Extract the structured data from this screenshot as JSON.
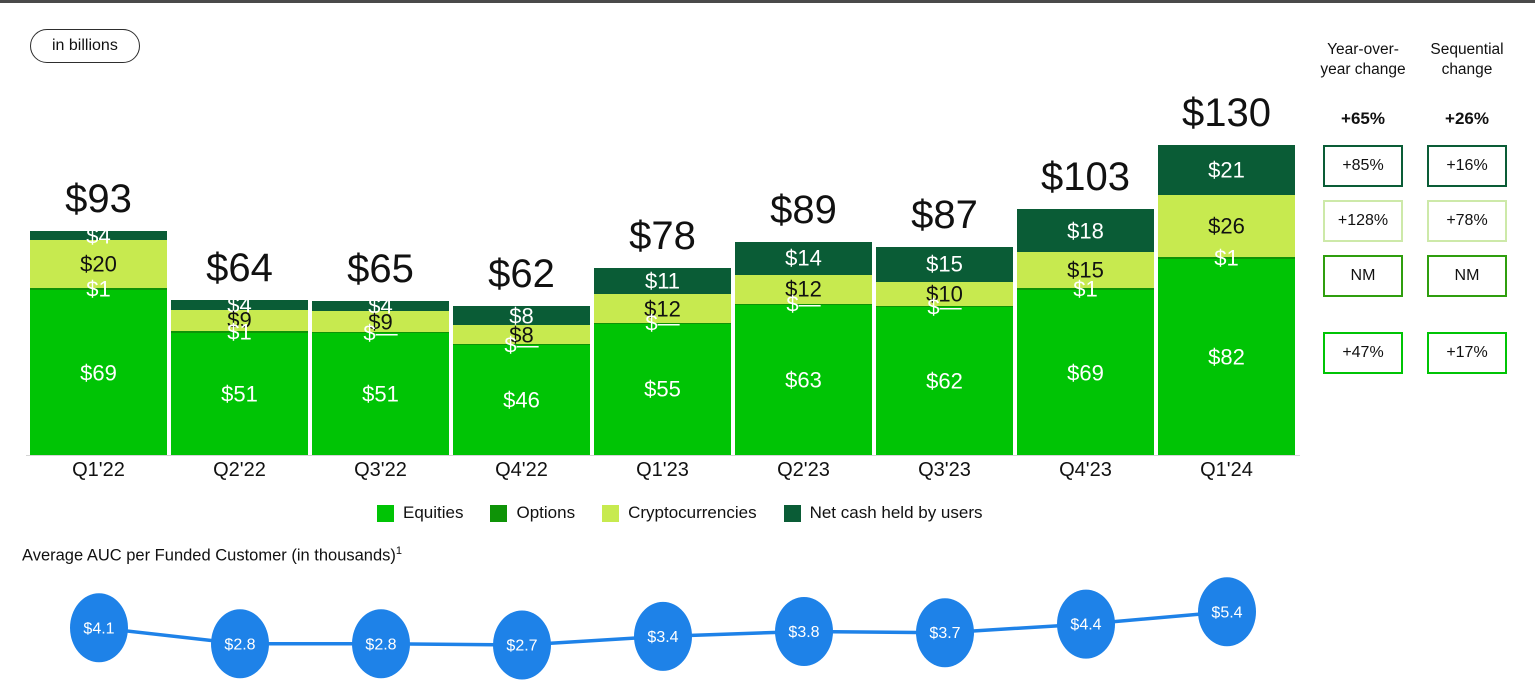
{
  "badge": {
    "label": "in billions"
  },
  "chart_data": [
    {
      "type": "bar",
      "subtype": "stacked",
      "unit": "in billions",
      "categories": [
        "Q1'22",
        "Q2'22",
        "Q3'22",
        "Q4'22",
        "Q1'23",
        "Q2'23",
        "Q3'23",
        "Q4'23",
        "Q1'24"
      ],
      "totals": {
        "values": [
          93,
          64,
          65,
          62,
          78,
          89,
          87,
          103,
          130
        ],
        "labels": [
          "$93",
          "$64",
          "$65",
          "$62",
          "$78",
          "$89",
          "$87",
          "$103",
          "$130"
        ]
      },
      "series": [
        {
          "name": "Equities",
          "color": "#00C405",
          "label_color": "#ffffff",
          "values": [
            69,
            51,
            51,
            46,
            55,
            63,
            62,
            69,
            82
          ],
          "labels": [
            "$69",
            "$51",
            "$51",
            "$46",
            "$55",
            "$63",
            "$62",
            "$69",
            "$82"
          ]
        },
        {
          "name": "Options",
          "color": "#0E9307",
          "label_color": "#ffffff",
          "values": [
            1,
            1,
            0.4,
            0.4,
            0.4,
            0.4,
            0.4,
            1,
            1
          ],
          "labels": [
            "$1",
            "$1",
            "$—",
            "$—",
            "$—",
            "$—",
            "$—",
            "$1",
            "$1"
          ]
        },
        {
          "name": "Cryptocurrencies",
          "color": "#C7EA4F",
          "label_color": "#111111",
          "values": [
            20,
            9,
            9,
            8,
            12,
            12,
            10,
            15,
            26
          ],
          "labels": [
            "$20",
            "$9",
            "$9",
            "$8",
            "$12",
            "$12",
            "$10",
            "$15",
            "$26"
          ]
        },
        {
          "name": "Net cash held by users",
          "color": "#0A5C36",
          "label_color": "#ffffff",
          "values": [
            4,
            4,
            4,
            8,
            11,
            14,
            15,
            18,
            21
          ],
          "labels": [
            "$4",
            "$4",
            "$4",
            "$8",
            "$11",
            "$14",
            "$15",
            "$18",
            "$21"
          ]
        }
      ],
      "legend": [
        "Equities",
        "Options",
        "Cryptocurrencies",
        "Net cash held by users"
      ],
      "legend_position": "bottom",
      "grid": false
    },
    {
      "type": "line",
      "title": "Average AUC per Funded Customer (in thousands)",
      "title_superscript": "1",
      "x": [
        "Q1'22",
        "Q2'22",
        "Q3'22",
        "Q4'22",
        "Q1'23",
        "Q2'23",
        "Q3'23",
        "Q4'23",
        "Q1'24"
      ],
      "values": [
        4.1,
        2.8,
        2.8,
        2.7,
        3.4,
        3.8,
        3.7,
        4.4,
        5.4
      ],
      "labels": [
        "$4.1",
        "$2.8",
        "$2.8",
        "$2.7",
        "$3.4",
        "$3.8",
        "$3.7",
        "$4.4",
        "$5.4"
      ],
      "marker_color": "#1E82E8"
    }
  ],
  "change_panel": {
    "columns": [
      {
        "header": "Year-over-\nyear change",
        "total": "+65%",
        "boxes": [
          "+85%",
          "+128%",
          "NM",
          "+47%"
        ]
      },
      {
        "header": "Sequential\nchange",
        "total": "+26%",
        "boxes": [
          "+16%",
          "+78%",
          "NM",
          "+17%"
        ]
      }
    ],
    "row_border_colors": [
      "#0A5C36",
      "#CDE9A9",
      "#2F9E0E",
      "#00C405"
    ]
  }
}
